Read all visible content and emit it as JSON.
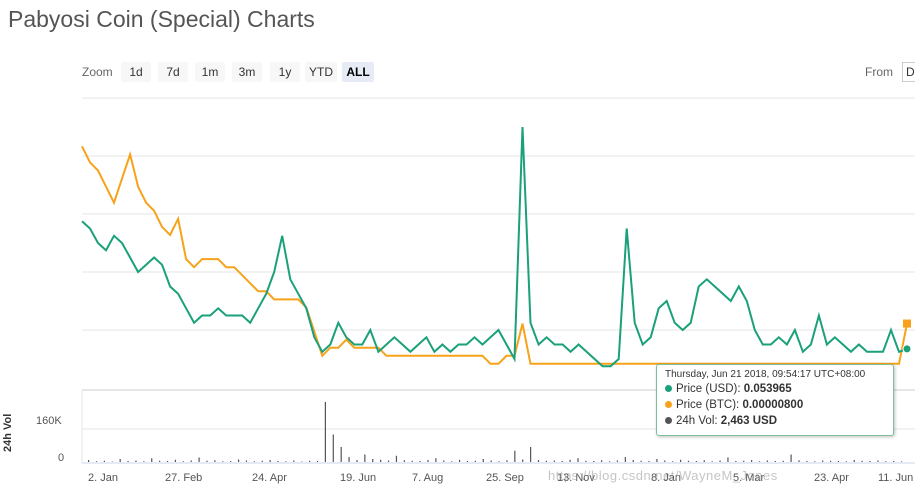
{
  "page": {
    "title": "Pabyosi Coin (Special) Charts"
  },
  "zoom": {
    "label": "Zoom",
    "buttons": [
      "1d",
      "7d",
      "1m",
      "3m",
      "1y",
      "YTD",
      "ALL"
    ],
    "active": "ALL"
  },
  "range_selector": {
    "from_label": "From",
    "from_value": "D"
  },
  "colors": {
    "price_usd": "#1aa07a",
    "price_btc": "#f7a21a",
    "volume": "#555555",
    "tooltip_border": "#7fbf9e"
  },
  "tooltip": {
    "date": "Thursday, Jun 21 2018, 09:54:17 UTC+08:00",
    "rows": [
      {
        "label": "Price (USD):",
        "value": "0.053965",
        "color": "#1aa07a"
      },
      {
        "label": "Price (BTC):",
        "value": "0.00000800",
        "color": "#f7a21a"
      },
      {
        "label": "24h Vol:",
        "value": "2,463 USD",
        "color": "#555555"
      }
    ]
  },
  "watermark": "https://blog.csdn.net/WayneM_Jones",
  "chart_data": {
    "type": "line",
    "x_tick_labels": [
      "2. Jan",
      "27. Feb",
      "24. Apr",
      "19. Jun",
      "7. Aug",
      "25. Sep",
      "13. Nov",
      "8. Jan",
      "5. Mar",
      "23. Apr",
      "11. Jun"
    ],
    "grid": true,
    "legend": "none",
    "series": [
      {
        "name": "Price (USD)",
        "values": [
          0.23,
          0.22,
          0.2,
          0.19,
          0.21,
          0.2,
          0.18,
          0.16,
          0.17,
          0.18,
          0.17,
          0.14,
          0.13,
          0.11,
          0.09,
          0.1,
          0.1,
          0.11,
          0.1,
          0.1,
          0.1,
          0.09,
          0.11,
          0.13,
          0.16,
          0.21,
          0.15,
          0.13,
          0.11,
          0.07,
          0.05,
          0.06,
          0.09,
          0.07,
          0.06,
          0.06,
          0.08,
          0.05,
          0.06,
          0.07,
          0.06,
          0.05,
          0.06,
          0.07,
          0.05,
          0.06,
          0.05,
          0.06,
          0.06,
          0.07,
          0.06,
          0.07,
          0.08,
          0.06,
          0.04,
          0.36,
          0.09,
          0.06,
          0.07,
          0.06,
          0.06,
          0.05,
          0.06,
          0.05,
          0.04,
          0.03,
          0.03,
          0.04,
          0.22,
          0.09,
          0.06,
          0.07,
          0.11,
          0.12,
          0.09,
          0.08,
          0.09,
          0.14,
          0.15,
          0.14,
          0.13,
          0.12,
          0.14,
          0.12,
          0.08,
          0.06,
          0.06,
          0.07,
          0.06,
          0.08,
          0.05,
          0.06,
          0.1,
          0.06,
          0.07,
          0.06,
          0.05,
          0.06,
          0.05,
          0.05,
          0.05,
          0.08,
          0.05,
          0.054
        ]
      },
      {
        "name": "Price (BTC)",
        "values": [
          3e-05,
          2.8e-05,
          2.7e-05,
          2.5e-05,
          2.3e-05,
          2.6e-05,
          2.9e-05,
          2.5e-05,
          2.3e-05,
          2.2e-05,
          2e-05,
          1.9e-05,
          2.1e-05,
          1.6e-05,
          1.5e-05,
          1.6e-05,
          1.6e-05,
          1.6e-05,
          1.5e-05,
          1.5e-05,
          1.4e-05,
          1.3e-05,
          1.2e-05,
          1.2e-05,
          1.1e-05,
          1.1e-05,
          1.1e-05,
          1.1e-05,
          1e-05,
          7e-06,
          4e-06,
          5e-06,
          5e-06,
          6e-06,
          5e-06,
          5e-06,
          5e-06,
          5e-06,
          4e-06,
          4e-06,
          4e-06,
          4e-06,
          4e-06,
          4e-06,
          4e-06,
          4e-06,
          4e-06,
          4e-06,
          4e-06,
          4e-06,
          4e-06,
          3e-06,
          3e-06,
          4e-06,
          4e-06,
          8e-06,
          3e-06,
          3e-06,
          3e-06,
          3e-06,
          3e-06,
          3e-06,
          3e-06,
          3e-06,
          3e-06,
          3e-06,
          3e-06,
          3e-06,
          3e-06,
          3e-06,
          3e-06,
          3e-06,
          3e-06,
          3e-06,
          3e-06,
          3e-06,
          3e-06,
          3e-06,
          3e-06,
          3e-06,
          3e-06,
          3e-06,
          3e-06,
          3e-06,
          3e-06,
          3e-06,
          3e-06,
          3e-06,
          3e-06,
          3e-06,
          3e-06,
          3e-06,
          3e-06,
          3e-06,
          3e-06,
          3e-06,
          3e-06,
          3e-06,
          3e-06,
          3e-06,
          3e-06,
          3e-06,
          3e-06,
          8e-06
        ]
      }
    ],
    "volume": {
      "name": "24h Vol",
      "y_tick_labels": [
        "160K",
        "0"
      ],
      "ylim": [
        0,
        280000
      ],
      "values": [
        8000,
        3000,
        5000,
        2000,
        12000,
        4000,
        6000,
        3000,
        15000,
        5000,
        4000,
        9000,
        3000,
        6000,
        18000,
        5000,
        7000,
        3000,
        4000,
        10000,
        6000,
        3000,
        5000,
        8000,
        4000,
        3000,
        6000,
        2000,
        5000,
        4000,
        240000,
        110000,
        60000,
        20000,
        8000,
        30000,
        12000,
        9000,
        6000,
        25000,
        7000,
        5000,
        4000,
        8000,
        15000,
        6000,
        3000,
        9000,
        4000,
        5000,
        12000,
        6000,
        3000,
        7000,
        45000,
        10000,
        60000,
        8000,
        5000,
        6000,
        4000,
        9000,
        15000,
        5000,
        4000,
        7000,
        3000,
        6000,
        20000,
        8000,
        5000,
        4000,
        12000,
        6000,
        3000,
        9000,
        5000,
        4000,
        7000,
        3000,
        6000,
        18000,
        4000,
        5000,
        8000,
        3000,
        6000,
        4000,
        5000,
        30000,
        7000,
        4000,
        3000,
        6000,
        5000,
        4000,
        3000,
        8000,
        5000,
        4000,
        6000,
        3000,
        4000,
        2463
      ]
    }
  }
}
